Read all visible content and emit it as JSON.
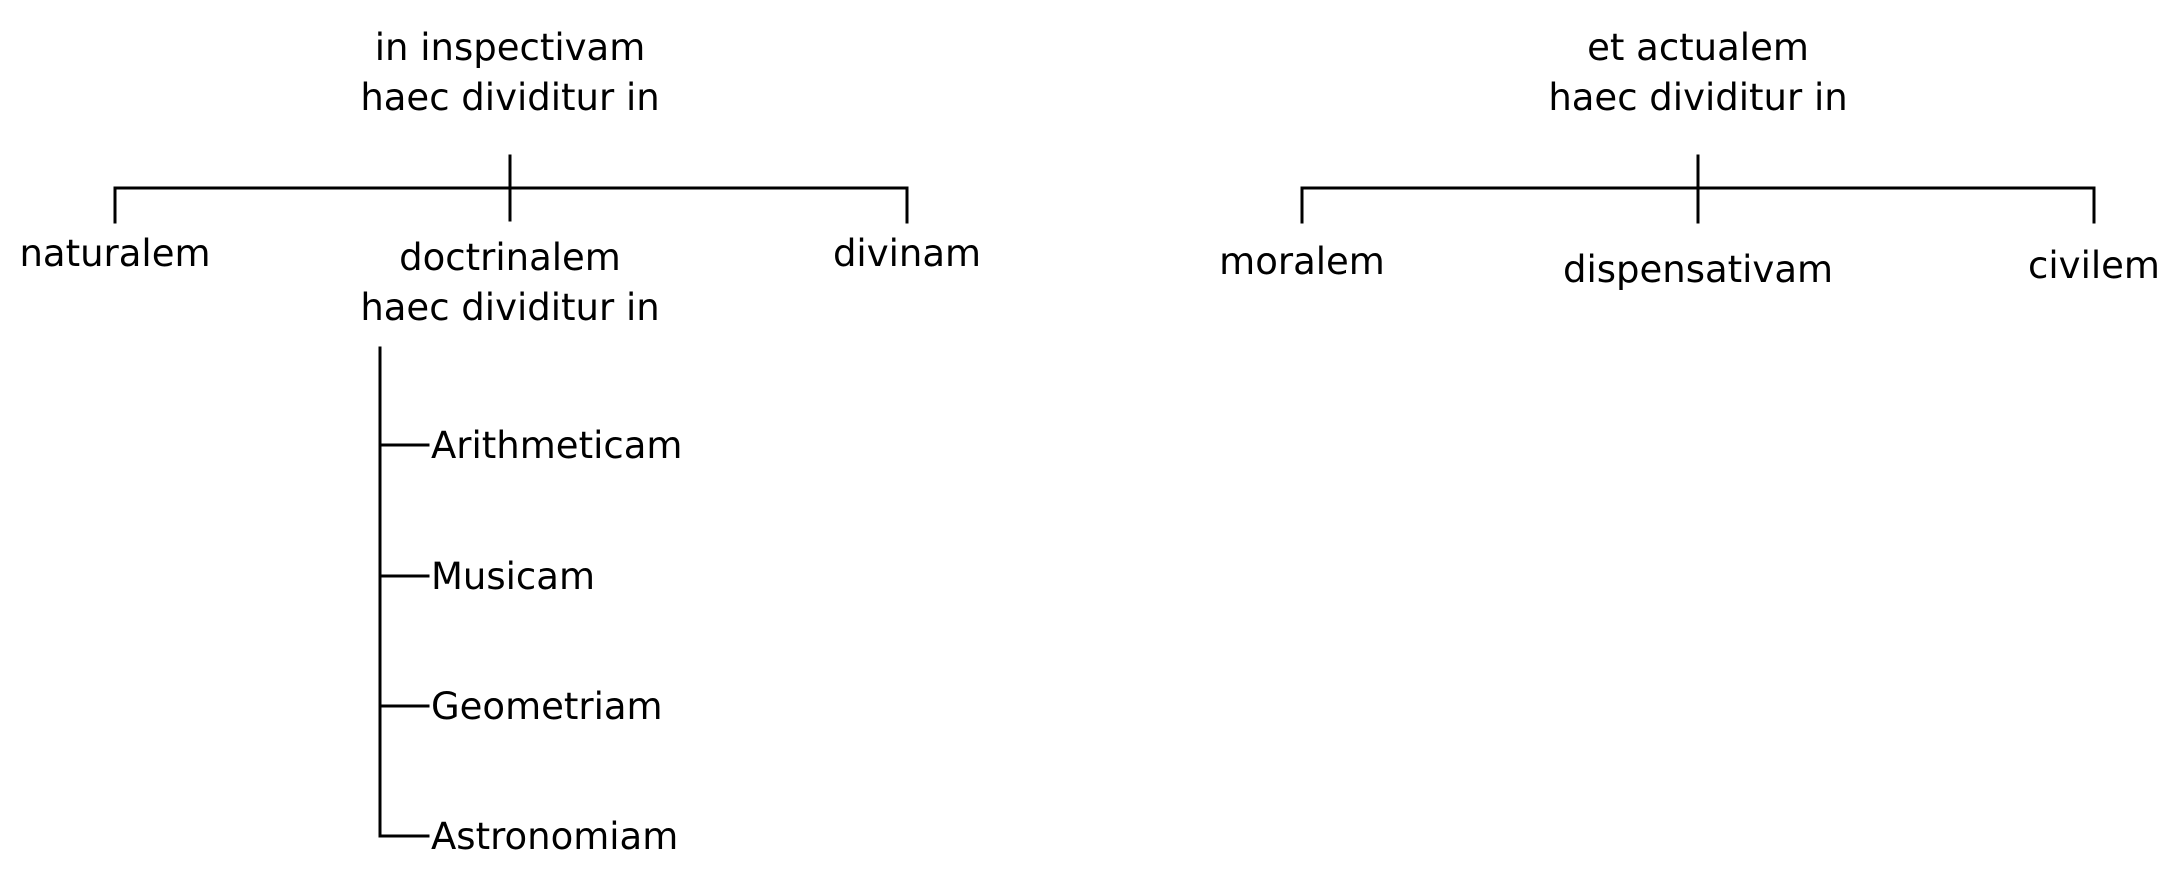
{
  "diagram": {
    "left_tree": {
      "root": {
        "line1": "in inspectivam",
        "line2": "haec dividitur in"
      },
      "children": {
        "naturalem": "naturalem",
        "doctrinalem": {
          "line1": "doctrinalem",
          "line2": "haec dividitur in"
        },
        "divinam": "divinam"
      },
      "doctrinalem_children": [
        "Arithmeticam",
        "Musicam",
        "Geometriam",
        "Astronomiam"
      ]
    },
    "right_tree": {
      "root": {
        "line1": "et actualem",
        "line2": "haec dividitur in"
      },
      "children": [
        "moralem",
        "dispensativam",
        "civilem"
      ]
    }
  }
}
